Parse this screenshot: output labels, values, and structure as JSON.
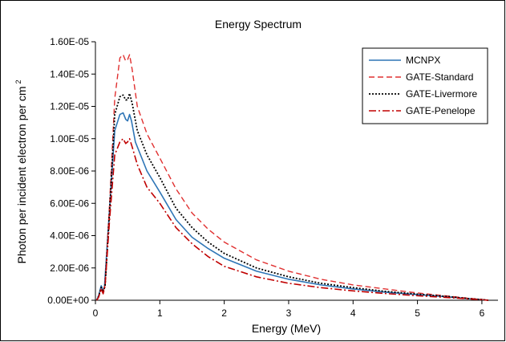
{
  "chart_data": {
    "type": "line",
    "title": "Energy Spectrum",
    "xlabel": "Energy (MeV)",
    "ylabel": "Photon per incident electron per cm",
    "ylabel_superscript": "2",
    "xlim": [
      0,
      6.25
    ],
    "ylim": [
      0,
      1.6e-05
    ],
    "x_ticks": [
      "0",
      "1",
      "2",
      "3",
      "4",
      "5",
      "6"
    ],
    "y_ticks": [
      "0.00E+00",
      "2.00E-06",
      "4.00E-06",
      "6.00E-06",
      "8.00E-06",
      "1.00E-05",
      "1.20E-05",
      "1.40E-05",
      "1.60E-05"
    ],
    "grid": false,
    "legend_position": "top-right",
    "series": [
      {
        "name": "MCNPX",
        "color": "#2e75b6",
        "dash": "solid",
        "points": [
          [
            0.02,
            0
          ],
          [
            0.05,
            3e-07
          ],
          [
            0.09,
            9e-07
          ],
          [
            0.12,
            6e-07
          ],
          [
            0.14,
            8e-07
          ],
          [
            0.2,
            4.5e-06
          ],
          [
            0.3,
            1.05e-05
          ],
          [
            0.38,
            1.15e-05
          ],
          [
            0.43,
            1.16e-05
          ],
          [
            0.47,
            1.12e-05
          ],
          [
            0.5,
            1.11e-05
          ],
          [
            0.53,
            1.15e-05
          ],
          [
            0.56,
            1.11e-05
          ],
          [
            0.62,
            9.8e-06
          ],
          [
            0.8,
            8e-06
          ],
          [
            1.0,
            6.7e-06
          ],
          [
            1.25,
            5e-06
          ],
          [
            1.5,
            3.9e-06
          ],
          [
            1.75,
            3.2e-06
          ],
          [
            2.0,
            2.6e-06
          ],
          [
            2.5,
            1.8e-06
          ],
          [
            3.0,
            1.3e-06
          ],
          [
            3.5,
            9.5e-07
          ],
          [
            4.0,
            7e-07
          ],
          [
            4.5,
            5e-07
          ],
          [
            5.0,
            3.5e-07
          ],
          [
            5.5,
            2e-07
          ],
          [
            5.8,
            1e-07
          ],
          [
            6.0,
            5e-08
          ],
          [
            6.1,
            0
          ]
        ]
      },
      {
        "name": "GATE-Standard",
        "color": "#e03030",
        "dash": "dashed",
        "points": [
          [
            0.02,
            0
          ],
          [
            0.05,
            2e-07
          ],
          [
            0.09,
            7e-07
          ],
          [
            0.12,
            5e-07
          ],
          [
            0.15,
            1e-06
          ],
          [
            0.22,
            6e-06
          ],
          [
            0.3,
            1.25e-05
          ],
          [
            0.38,
            1.5e-05
          ],
          [
            0.43,
            1.52e-05
          ],
          [
            0.47,
            1.48e-05
          ],
          [
            0.5,
            1.49e-05
          ],
          [
            0.53,
            1.52e-05
          ],
          [
            0.57,
            1.43e-05
          ],
          [
            0.65,
            1.2e-05
          ],
          [
            0.8,
            1.03e-05
          ],
          [
            1.0,
            8.8e-06
          ],
          [
            1.25,
            6.9e-06
          ],
          [
            1.5,
            5.4e-06
          ],
          [
            1.75,
            4.4e-06
          ],
          [
            2.0,
            3.6e-06
          ],
          [
            2.5,
            2.5e-06
          ],
          [
            3.0,
            1.8e-06
          ],
          [
            3.5,
            1.3e-06
          ],
          [
            4.0,
            9.5e-07
          ],
          [
            4.5,
            7e-07
          ],
          [
            5.0,
            4.5e-07
          ],
          [
            5.5,
            2.5e-07
          ],
          [
            5.8,
            1.2e-07
          ],
          [
            6.0,
            5e-08
          ],
          [
            6.1,
            0
          ]
        ]
      },
      {
        "name": "GATE-Livermore",
        "color": "#000000",
        "dash": "dotted",
        "points": [
          [
            0.02,
            0
          ],
          [
            0.05,
            2.5e-07
          ],
          [
            0.09,
            8e-07
          ],
          [
            0.12,
            5e-07
          ],
          [
            0.15,
            9e-07
          ],
          [
            0.22,
            5.5e-06
          ],
          [
            0.3,
            1.15e-05
          ],
          [
            0.38,
            1.26e-05
          ],
          [
            0.43,
            1.27e-05
          ],
          [
            0.47,
            1.24e-05
          ],
          [
            0.5,
            1.24e-05
          ],
          [
            0.53,
            1.28e-05
          ],
          [
            0.57,
            1.22e-05
          ],
          [
            0.65,
            1.05e-05
          ],
          [
            0.8,
            9e-06
          ],
          [
            1.0,
            7.6e-06
          ],
          [
            1.25,
            5.7e-06
          ],
          [
            1.5,
            4.5e-06
          ],
          [
            1.75,
            3.6e-06
          ],
          [
            2.0,
            2.9e-06
          ],
          [
            2.5,
            2e-06
          ],
          [
            3.0,
            1.45e-06
          ],
          [
            3.5,
            1.05e-06
          ],
          [
            4.0,
            7.8e-07
          ],
          [
            4.5,
            5.5e-07
          ],
          [
            5.0,
            3.8e-07
          ],
          [
            5.5,
            2.2e-07
          ],
          [
            5.8,
            1e-07
          ],
          [
            6.0,
            4e-08
          ],
          [
            6.1,
            0
          ]
        ]
      },
      {
        "name": "GATE-Penelope",
        "color": "#c00000",
        "dash": "dashdot",
        "points": [
          [
            0.02,
            0
          ],
          [
            0.05,
            2e-07
          ],
          [
            0.09,
            7e-07
          ],
          [
            0.12,
            4e-07
          ],
          [
            0.15,
            9e-07
          ],
          [
            0.22,
            5e-06
          ],
          [
            0.3,
            9e-06
          ],
          [
            0.38,
            9.8e-06
          ],
          [
            0.43,
            1e-05
          ],
          [
            0.47,
            9.7e-06
          ],
          [
            0.5,
            9.8e-06
          ],
          [
            0.53,
            1e-05
          ],
          [
            0.57,
            9.5e-06
          ],
          [
            0.65,
            8.4e-06
          ],
          [
            0.8,
            7e-06
          ],
          [
            1.0,
            6e-06
          ],
          [
            1.25,
            4.5e-06
          ],
          [
            1.5,
            3.5e-06
          ],
          [
            1.75,
            2.7e-06
          ],
          [
            2.0,
            2.1e-06
          ],
          [
            2.5,
            1.45e-06
          ],
          [
            3.0,
            1.05e-06
          ],
          [
            3.5,
            7.8e-07
          ],
          [
            4.0,
            5.8e-07
          ],
          [
            4.5,
            4.2e-07
          ],
          [
            5.0,
            2.8e-07
          ],
          [
            5.5,
            1.6e-07
          ],
          [
            5.8,
            8e-08
          ],
          [
            6.0,
            3e-08
          ],
          [
            6.1,
            0
          ]
        ]
      }
    ]
  }
}
